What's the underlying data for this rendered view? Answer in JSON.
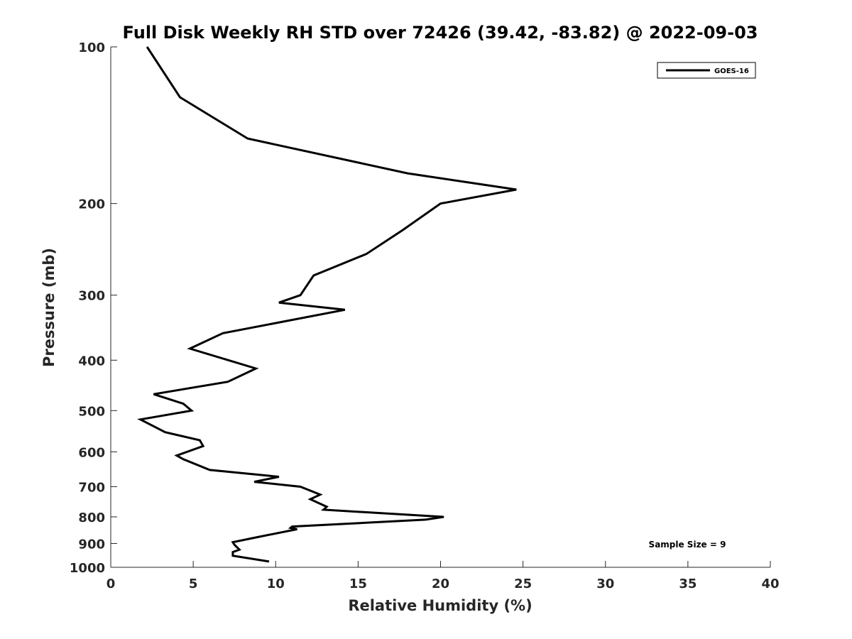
{
  "chart_data": {
    "type": "line",
    "title": "Full Disk Weekly RH STD over 72426 (39.42, -83.82) @ 2022-09-03",
    "xlabel": "Relative Humidity (%)",
    "ylabel": "Pressure (mb)",
    "xlim": [
      0,
      40
    ],
    "ylim": [
      100,
      1000
    ],
    "yscale": "log",
    "yreversed": true,
    "xticks": [
      0,
      5,
      10,
      15,
      20,
      25,
      30,
      35,
      40
    ],
    "yticks": [
      100,
      200,
      300,
      400,
      500,
      600,
      700,
      800,
      900,
      1000
    ],
    "grid": false,
    "legend": {
      "position": "top-right",
      "entries": [
        "GOES-16"
      ]
    },
    "annotation": "Sample Size = 9",
    "series": [
      {
        "name": "GOES-16",
        "color": "#000000",
        "points": [
          [
            2.2,
            100
          ],
          [
            4.2,
            125
          ],
          [
            8.3,
            150
          ],
          [
            18.0,
            175
          ],
          [
            24.6,
            188
          ],
          [
            20.0,
            200
          ],
          [
            17.7,
            225
          ],
          [
            15.5,
            250
          ],
          [
            12.3,
            275
          ],
          [
            11.5,
            300
          ],
          [
            10.2,
            310
          ],
          [
            14.2,
            320
          ],
          [
            6.8,
            355
          ],
          [
            4.8,
            380
          ],
          [
            8.8,
            415
          ],
          [
            7.1,
            440
          ],
          [
            2.6,
            465
          ],
          [
            4.4,
            485
          ],
          [
            4.9,
            500
          ],
          [
            1.8,
            520
          ],
          [
            3.3,
            550
          ],
          [
            5.4,
            570
          ],
          [
            5.6,
            585
          ],
          [
            4.0,
            610
          ],
          [
            4.4,
            620
          ],
          [
            6.0,
            650
          ],
          [
            10.2,
            670
          ],
          [
            8.7,
            685
          ],
          [
            11.5,
            700
          ],
          [
            12.7,
            725
          ],
          [
            12.1,
            740
          ],
          [
            13.1,
            765
          ],
          [
            12.9,
            775
          ],
          [
            20.2,
            800
          ],
          [
            19.1,
            810
          ],
          [
            11.0,
            835
          ],
          [
            10.9,
            840
          ],
          [
            11.3,
            845
          ],
          [
            8.9,
            875
          ],
          [
            7.4,
            895
          ],
          [
            7.5,
            905
          ],
          [
            7.8,
            925
          ],
          [
            7.4,
            935
          ],
          [
            7.4,
            950
          ],
          [
            9.6,
            975
          ]
        ]
      }
    ]
  }
}
